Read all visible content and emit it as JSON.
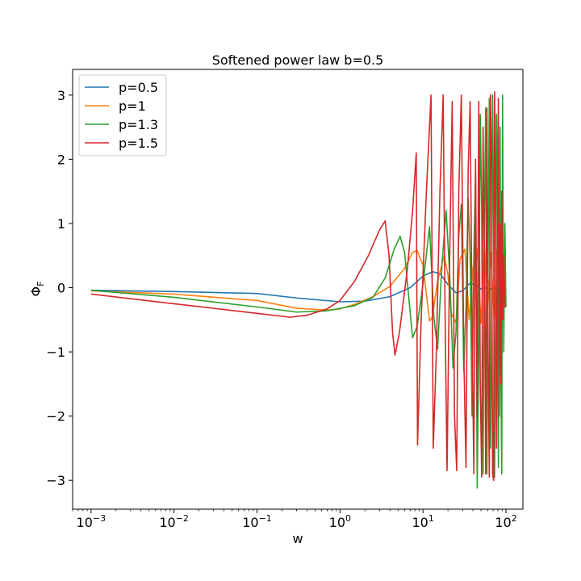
{
  "chart_data": {
    "type": "line",
    "title": "Softened power law b=0.5",
    "xlabel": "w",
    "ylabel": "Φ",
    "ylabel_subscript": "F",
    "xscale": "log",
    "xlim": [
      0.0006,
      160
    ],
    "ylim": [
      -3.45,
      3.4
    ],
    "x_ticks": [
      {
        "value": 0.001,
        "base": "10",
        "exp": "−3"
      },
      {
        "value": 0.01,
        "base": "10",
        "exp": "−2"
      },
      {
        "value": 0.1,
        "base": "10",
        "exp": "−1"
      },
      {
        "value": 1,
        "base": "10",
        "exp": "0"
      },
      {
        "value": 10,
        "base": "10",
        "exp": "1"
      },
      {
        "value": 100,
        "base": "10",
        "exp": "2"
      }
    ],
    "y_ticks": [
      {
        "value": -3,
        "label": "−3"
      },
      {
        "value": -2,
        "label": "−2"
      },
      {
        "value": -1,
        "label": "−1"
      },
      {
        "value": 0,
        "label": "0"
      },
      {
        "value": 1,
        "label": "1"
      },
      {
        "value": 2,
        "label": "2"
      },
      {
        "value": 3,
        "label": "3"
      }
    ],
    "grid": false,
    "legend_position": "top-left",
    "series": [
      {
        "name": "p=0.5",
        "color": "#1f77b4",
        "points": [
          [
            0.001,
            -0.04
          ],
          [
            0.01,
            -0.06
          ],
          [
            0.1,
            -0.09
          ],
          [
            0.3,
            -0.16
          ],
          [
            1,
            -0.22
          ],
          [
            2,
            -0.21
          ],
          [
            4,
            -0.14
          ],
          [
            7,
            0.0
          ],
          [
            10,
            0.18
          ],
          [
            13,
            0.25
          ],
          [
            16,
            0.22
          ],
          [
            20,
            0.05
          ],
          [
            25,
            -0.08
          ],
          [
            30,
            -0.05
          ],
          [
            36,
            0.06
          ],
          [
            42,
            0.05
          ],
          [
            50,
            -0.02
          ],
          [
            58,
            0.0
          ],
          [
            66,
            -0.02
          ],
          [
            75,
            0.0
          ],
          [
            85,
            -0.02
          ],
          [
            95,
            0.0
          ]
        ]
      },
      {
        "name": "p=1",
        "color": "#ff7f0e",
        "points": [
          [
            0.001,
            -0.05
          ],
          [
            0.01,
            -0.1
          ],
          [
            0.1,
            -0.2
          ],
          [
            0.3,
            -0.32
          ],
          [
            0.7,
            -0.35
          ],
          [
            1,
            -0.33
          ],
          [
            1.5,
            -0.26
          ],
          [
            2.5,
            -0.14
          ],
          [
            4,
            0.02
          ],
          [
            6,
            0.3
          ],
          [
            7.5,
            0.55
          ],
          [
            8.5,
            0.58
          ],
          [
            10,
            0.35
          ],
          [
            11,
            -0.1
          ],
          [
            12,
            -0.52
          ],
          [
            13,
            -0.45
          ],
          [
            15,
            0.1
          ],
          [
            18,
            0.5
          ],
          [
            20,
            0.2
          ],
          [
            22,
            -0.4
          ],
          [
            25,
            -0.55
          ],
          [
            28,
            0.45
          ],
          [
            32,
            0.6
          ],
          [
            36,
            -0.5
          ],
          [
            40,
            0.3
          ],
          [
            45,
            0.6
          ],
          [
            50,
            -0.55
          ],
          [
            55,
            0.65
          ],
          [
            60,
            -0.4
          ],
          [
            66,
            0.55
          ],
          [
            72,
            -0.5
          ],
          [
            78,
            0.6
          ],
          [
            85,
            -0.55
          ],
          [
            92,
            0.5
          ],
          [
            98,
            -0.3
          ]
        ]
      },
      {
        "name": "p=1.3",
        "color": "#2ca02c",
        "points": [
          [
            0.001,
            -0.04
          ],
          [
            0.01,
            -0.15
          ],
          [
            0.1,
            -0.3
          ],
          [
            0.3,
            -0.38
          ],
          [
            0.7,
            -0.36
          ],
          [
            1.5,
            -0.28
          ],
          [
            2.5,
            -0.15
          ],
          [
            3.5,
            0.15
          ],
          [
            4.5,
            0.6
          ],
          [
            5.3,
            0.8
          ],
          [
            6,
            0.55
          ],
          [
            6.8,
            -0.2
          ],
          [
            7.5,
            -0.78
          ],
          [
            8.5,
            -0.6
          ],
          [
            10,
            0.05
          ],
          [
            12,
            0.95
          ],
          [
            13.5,
            -0.45
          ],
          [
            15,
            -0.96
          ],
          [
            17,
            0.4
          ],
          [
            19,
            1.2
          ],
          [
            21,
            0.2
          ],
          [
            23,
            -1.25
          ],
          [
            25,
            -0.7
          ],
          [
            27,
            0.8
          ],
          [
            29,
            1.3
          ],
          [
            31,
            -1.3
          ],
          [
            33,
            -0.3
          ],
          [
            35,
            1.4
          ],
          [
            37,
            0.5
          ],
          [
            39,
            -2.0
          ],
          [
            41,
            0.5
          ],
          [
            43,
            1.8
          ],
          [
            45,
            -3.12
          ],
          [
            47,
            -1.0
          ],
          [
            49,
            2.7
          ],
          [
            51,
            1.2
          ],
          [
            53,
            -2.9
          ],
          [
            55,
            1.0
          ],
          [
            57,
            2.8
          ],
          [
            59,
            -2.9
          ],
          [
            61,
            0.5
          ],
          [
            63,
            2.95
          ],
          [
            65,
            -2.5
          ],
          [
            67,
            -1.2
          ],
          [
            69,
            3.0
          ],
          [
            71,
            1.0
          ],
          [
            73,
            -2.95
          ],
          [
            75,
            -0.5
          ],
          [
            77,
            2.7
          ],
          [
            79,
            1.5
          ],
          [
            81,
            -2.8
          ],
          [
            83,
            0.3
          ],
          [
            85,
            2.5
          ],
          [
            87,
            -1.5
          ],
          [
            89,
            -2.9
          ],
          [
            91,
            3.0
          ],
          [
            94,
            -1.0
          ],
          [
            97,
            1.0
          ],
          [
            100,
            -0.3
          ]
        ]
      },
      {
        "name": "p=1.5",
        "color": "#d62728",
        "points": [
          [
            0.001,
            -0.1
          ],
          [
            0.01,
            -0.25
          ],
          [
            0.1,
            -0.4
          ],
          [
            0.25,
            -0.46
          ],
          [
            0.4,
            -0.43
          ],
          [
            0.7,
            -0.33
          ],
          [
            1,
            -0.2
          ],
          [
            1.5,
            0.1
          ],
          [
            2.2,
            0.5
          ],
          [
            3,
            0.9
          ],
          [
            3.5,
            1.04
          ],
          [
            3.9,
            0.5
          ],
          [
            4.3,
            -0.7
          ],
          [
            4.6,
            -1.05
          ],
          [
            5.2,
            -0.7
          ],
          [
            6.5,
            0.3
          ],
          [
            7.5,
            1.2
          ],
          [
            8.3,
            2.1
          ],
          [
            8.6,
            -2.45
          ],
          [
            9.5,
            -0.5
          ],
          [
            11,
            1.5
          ],
          [
            12.5,
            3.0
          ],
          [
            13.3,
            -2.5
          ],
          [
            14.5,
            -1.0
          ],
          [
            16,
            1.5
          ],
          [
            17.5,
            3.0
          ],
          [
            18.5,
            -0.5
          ],
          [
            19.5,
            -2.85
          ],
          [
            21,
            0.5
          ],
          [
            22.5,
            2.9
          ],
          [
            24,
            -2.0
          ],
          [
            25.5,
            -2.85
          ],
          [
            27,
            1.5
          ],
          [
            29,
            3.0
          ],
          [
            31,
            -1.0
          ],
          [
            33,
            -2.8
          ],
          [
            35,
            1.8
          ],
          [
            37,
            2.9
          ],
          [
            39,
            -0.5
          ],
          [
            41,
            -2.9
          ],
          [
            43,
            2.0
          ],
          [
            45,
            -2.0
          ],
          [
            47,
            2.9
          ],
          [
            49,
            -1.5
          ],
          [
            51,
            -2.95
          ],
          [
            53,
            2.5
          ],
          [
            55,
            0.5
          ],
          [
            57,
            -2.9
          ],
          [
            59,
            2.8
          ],
          [
            61,
            -1.0
          ],
          [
            63,
            -2.95
          ],
          [
            65,
            3.0
          ],
          [
            67,
            2.0
          ],
          [
            69,
            -2.9
          ],
          [
            71,
            -3.0
          ],
          [
            73,
            3.05
          ],
          [
            75,
            1.5
          ],
          [
            77,
            -2.5
          ],
          [
            79,
            0.5
          ],
          [
            81,
            2.95
          ],
          [
            83,
            -2.0
          ],
          [
            85,
            1.0
          ],
          [
            87,
            -1.5
          ],
          [
            89,
            1.5
          ],
          [
            91,
            -0.5
          ],
          [
            94,
            0.5
          ],
          [
            97,
            -0.3
          ],
          [
            100,
            -0.3
          ]
        ]
      }
    ]
  }
}
